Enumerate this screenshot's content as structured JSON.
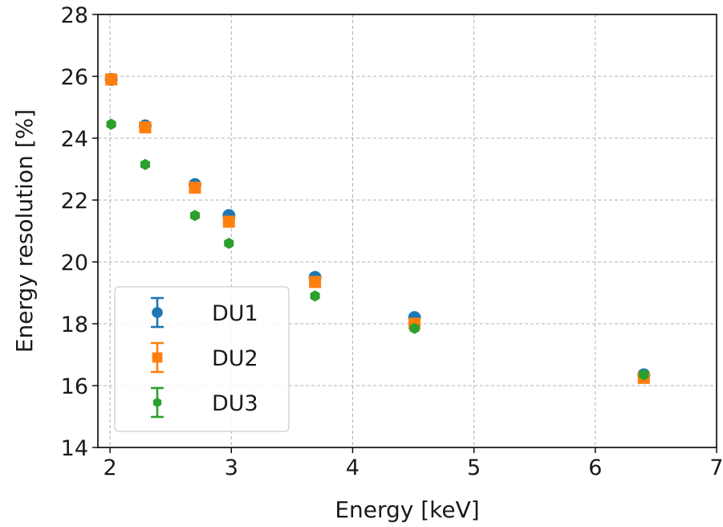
{
  "chart_data": {
    "type": "scatter",
    "title": "",
    "xlabel": "Energy [keV]",
    "ylabel": "Energy resolution [%]",
    "xlim": [
      1.9,
      7.0
    ],
    "ylim": [
      14,
      28
    ],
    "xticks": [
      2,
      3,
      4,
      5,
      6,
      7
    ],
    "yticks": [
      14,
      16,
      18,
      20,
      22,
      24,
      26,
      28
    ],
    "grid": true,
    "legend_position": "lower-left",
    "series": [
      {
        "name": "DU1",
        "color": "#1f77b4",
        "marker": "circle",
        "x": [
          2.01,
          2.29,
          2.7,
          2.98,
          3.69,
          4.51,
          6.4
        ],
        "y": [
          25.9,
          24.4,
          22.5,
          21.5,
          19.5,
          18.2,
          16.35
        ]
      },
      {
        "name": "DU2",
        "color": "#ff7f0e",
        "marker": "square",
        "x": [
          2.01,
          2.29,
          2.7,
          2.98,
          3.69,
          4.51,
          6.4
        ],
        "y": [
          25.9,
          24.35,
          22.4,
          21.3,
          19.35,
          18.0,
          16.25
        ]
      },
      {
        "name": "DU3",
        "color": "#2ca02c",
        "marker": "hexagon",
        "x": [
          2.01,
          2.29,
          2.7,
          2.98,
          3.69,
          4.51,
          6.4
        ],
        "y": [
          24.45,
          23.15,
          21.5,
          20.6,
          18.9,
          17.85,
          16.35
        ]
      }
    ]
  }
}
